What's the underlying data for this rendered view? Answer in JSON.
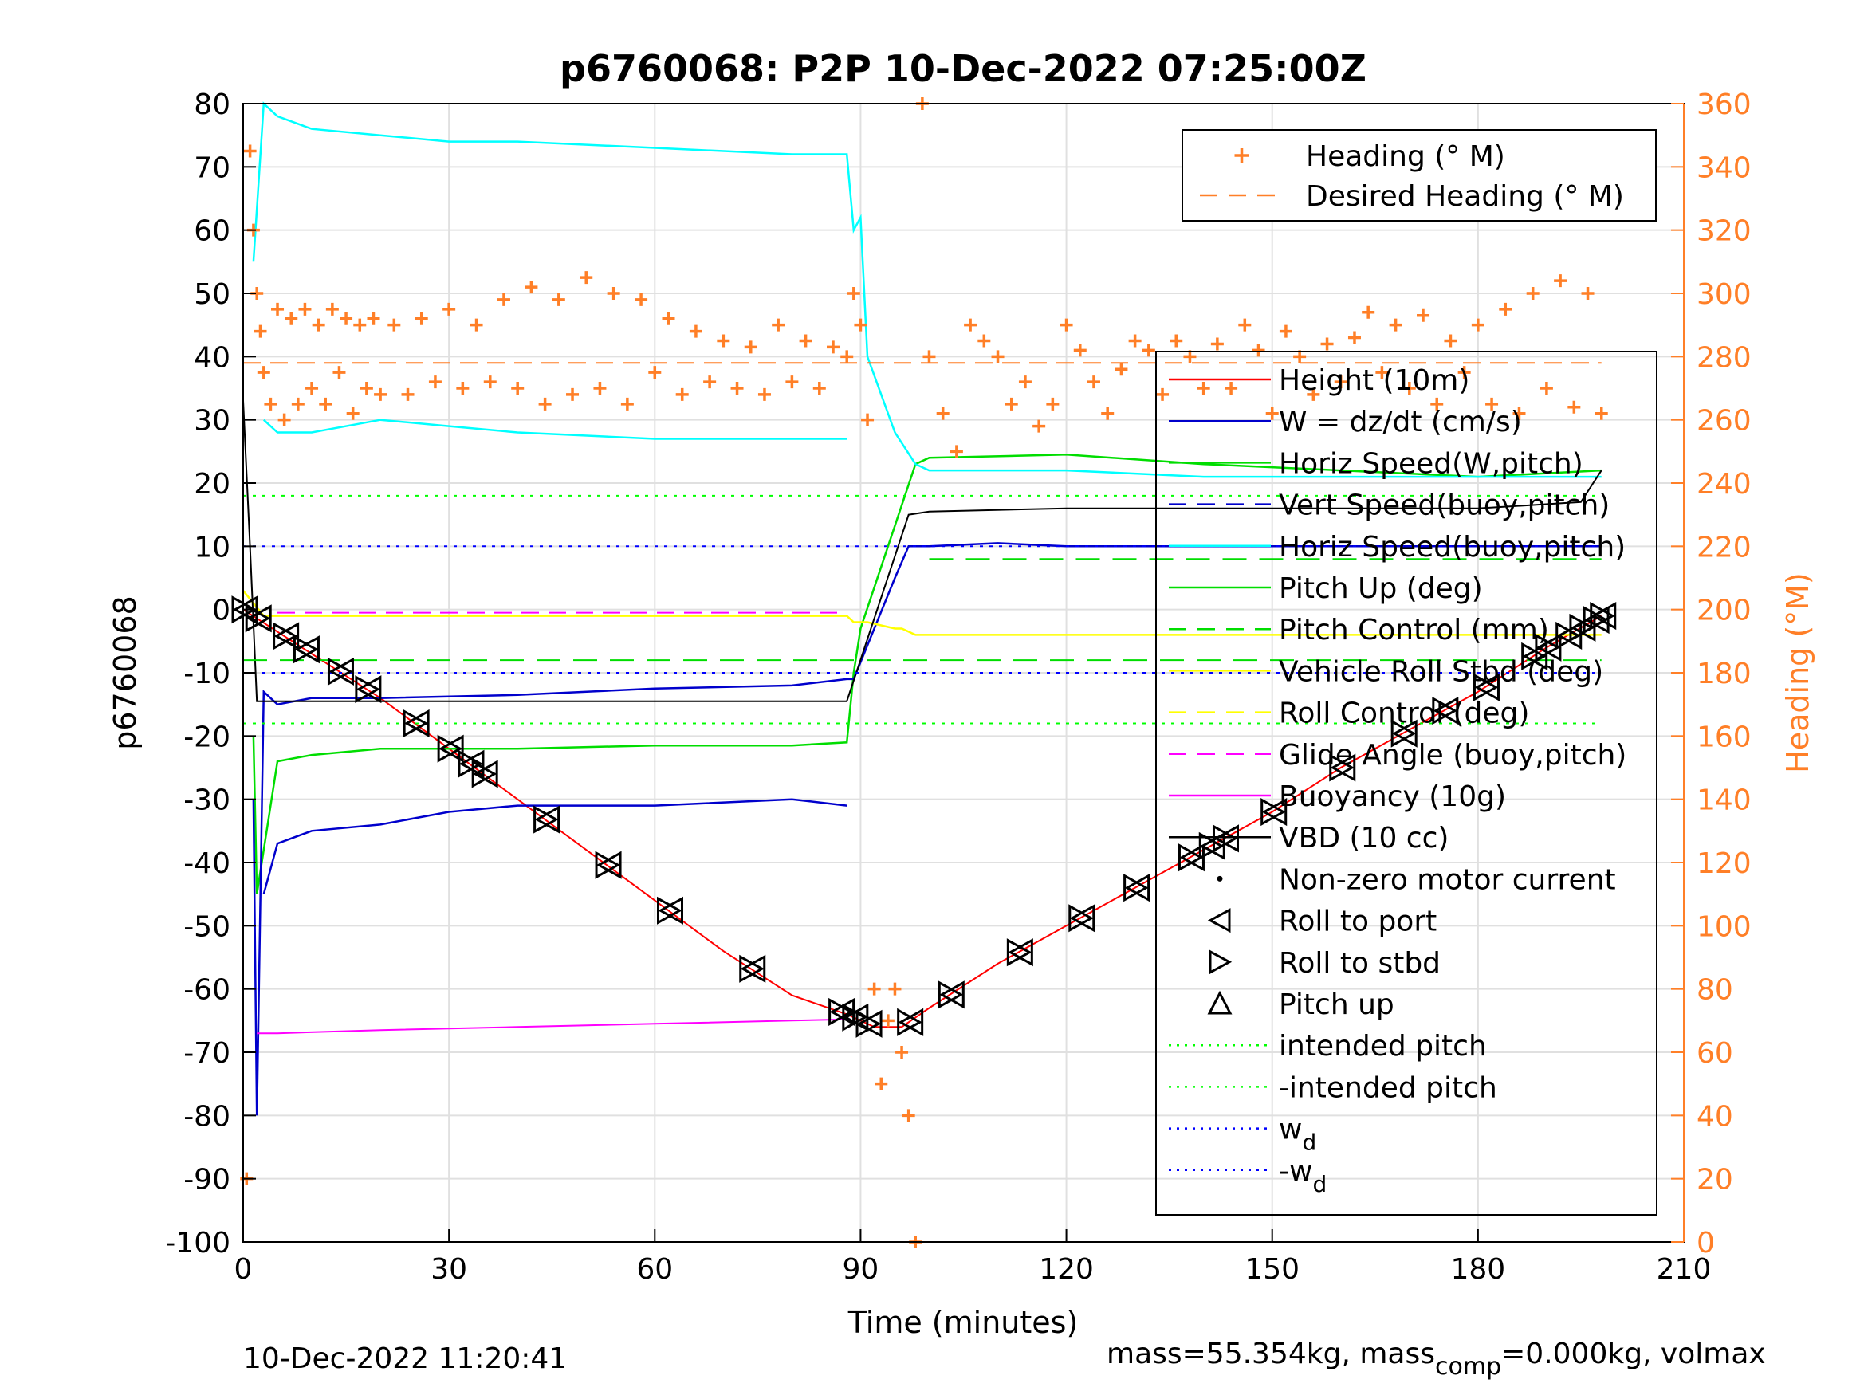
{
  "chart_data": {
    "type": "line",
    "title": "p6760068: P2P 10-Dec-2022 07:25:00Z",
    "xlabel": "Time (minutes)",
    "ylabel": "p6760068",
    "y2label": "Heading (°M)",
    "xlim": [
      0,
      210
    ],
    "ylim": [
      -100,
      80
    ],
    "y2lim": [
      0,
      360
    ],
    "x_ticks": [
      "0",
      "30",
      "60",
      "90",
      "120",
      "150",
      "180",
      "210"
    ],
    "y_ticks": [
      "80",
      "70",
      "60",
      "50",
      "40",
      "30",
      "20",
      "10",
      "0",
      "-10",
      "-20",
      "-30",
      "-40",
      "-50",
      "-60",
      "-70",
      "-80",
      "-90",
      "-100"
    ],
    "y2_ticks": [
      "360",
      "340",
      "320",
      "300",
      "280",
      "260",
      "240",
      "220",
      "200",
      "180",
      "160",
      "140",
      "120",
      "100",
      "80",
      "60",
      "40",
      "20",
      "0"
    ],
    "grid": true,
    "footer_left": "10-Dec-2022 11:20:41",
    "footer_right_1": "mass=55.354kg, mass",
    "footer_right_sub": "comp",
    "footer_right_2": "=0.000kg, volmax",
    "colors": {
      "heading": "#ff7f27",
      "height": "#ff0000",
      "w": "#0000cc",
      "horiz": "#00ffff",
      "pitch": "#00dd00",
      "roll": "#ffff00",
      "glide": "#ff00ff",
      "vbd": "#000000"
    },
    "legend_top": [
      {
        "label": "Heading (° M)",
        "style": "plus",
        "color": "#ff7f27"
      },
      {
        "label": "Desired Heading (° M)",
        "style": "dash",
        "color": "#ff7f27"
      }
    ],
    "legend_main": [
      {
        "label": "Height (10m)",
        "style": "solid",
        "color": "#ff0000"
      },
      {
        "label": "W = dz/dt (cm/s)",
        "style": "solid",
        "color": "#0000cc"
      },
      {
        "label": "Horiz Speed(W,pitch)",
        "style": "solid",
        "color": "#00dd00"
      },
      {
        "label": "Vert Speed(buoy,pitch)",
        "style": "dash",
        "color": "#0000cc"
      },
      {
        "label": "Horiz Speed(buoy,pitch)",
        "style": "solid",
        "color": "#00ffff"
      },
      {
        "label": "Pitch Up (deg)",
        "style": "solid",
        "color": "#00dd00"
      },
      {
        "label": "Pitch Control (mm)",
        "style": "dash",
        "color": "#00dd00"
      },
      {
        "label": "Vehicle Roll Stbd (deg)",
        "style": "solid",
        "color": "#ffff00"
      },
      {
        "label": "Roll Control (deg)",
        "style": "dash",
        "color": "#ffff00"
      },
      {
        "label": "Glide Angle (buoy,pitch)",
        "style": "dash",
        "color": "#ff00ff"
      },
      {
        "label": "Buoyancy (10g)",
        "style": "solid",
        "color": "#ff00ff"
      },
      {
        "label": "VBD (10 cc)",
        "style": "solid",
        "color": "#000000"
      },
      {
        "label": "Non-zero motor current",
        "style": "dot",
        "color": "#000000"
      },
      {
        "label": "Roll to port",
        "style": "tri-left",
        "color": "#000000"
      },
      {
        "label": "Roll to stbd",
        "style": "tri-right",
        "color": "#000000"
      },
      {
        "label": "Pitch up",
        "style": "tri-up",
        "color": "#000000"
      },
      {
        "label": "intended pitch",
        "style": "dotted",
        "color": "#00ff00"
      },
      {
        "label": "-intended pitch",
        "style": "dotted",
        "color": "#00ff00"
      },
      {
        "label": "w",
        "sub": "d",
        "style": "dotted",
        "color": "#0000ff"
      },
      {
        "label": "-w",
        "sub": "d",
        "style": "dotted",
        "color": "#0000ff"
      }
    ],
    "series": [
      {
        "name": "Height (10m)",
        "axis": "left",
        "x": [
          0,
          10,
          20,
          30,
          40,
          50,
          60,
          70,
          80,
          88,
          92,
          96,
          100,
          110,
          120,
          130,
          140,
          150,
          160,
          170,
          180,
          190,
          198
        ],
        "y": [
          0,
          -7,
          -14,
          -22,
          -30,
          -38,
          -46,
          -54,
          -61,
          -64,
          -66,
          -66,
          -63,
          -56,
          -50,
          -44,
          -38,
          -32,
          -25,
          -19,
          -13,
          -6,
          -1
        ]
      },
      {
        "name": "Horiz Speed(W,pitch)",
        "axis": "left",
        "x": [
          1.5,
          2,
          5,
          10,
          20,
          40,
          60,
          80,
          88,
          89,
          90,
          98,
          100,
          120,
          140,
          160,
          180,
          198
        ],
        "y": [
          -20,
          -45,
          -24,
          -23,
          -22,
          -22,
          -21.5,
          -21.5,
          -21,
          -10,
          -3,
          23,
          24,
          24.5,
          23,
          22,
          21,
          22
        ]
      },
      {
        "name": "W = dz/dt (cm/s)",
        "axis": "left",
        "x": [
          1.5,
          2,
          3,
          5,
          10,
          20,
          40,
          60,
          80,
          88,
          89,
          95,
          97,
          100,
          110,
          120,
          140,
          160,
          180,
          198
        ],
        "y": [
          -30,
          -80,
          -13,
          -15,
          -14,
          -14,
          -13.5,
          -12.5,
          -12,
          -11,
          -11,
          5,
          10,
          10,
          10.5,
          10,
          10,
          10,
          10,
          10
        ]
      },
      {
        "name": "W lower",
        "axis": "left",
        "x": [
          3,
          5,
          10,
          20,
          30,
          40,
          60,
          80,
          88
        ],
        "y": [
          -45,
          -37,
          -35,
          -34,
          -32,
          -31,
          -31,
          -30,
          -31
        ]
      },
      {
        "name": "Horiz Speed(buoy,pitch)",
        "axis": "left",
        "x": [
          1.5,
          3,
          5,
          10,
          20,
          30,
          40,
          60,
          80,
          88,
          89,
          90,
          91,
          95,
          98,
          100,
          120,
          140,
          160,
          180,
          198
        ],
        "y": [
          55,
          80,
          78,
          76,
          75,
          74,
          74,
          73,
          72,
          72,
          60,
          62,
          40,
          28,
          23,
          22,
          22,
          21,
          21,
          21,
          21
        ]
      },
      {
        "name": "Horiz Speed lower",
        "axis": "left",
        "x": [
          3,
          5,
          10,
          20,
          30,
          40,
          60,
          80,
          88
        ],
        "y": [
          30,
          28,
          28,
          30,
          29,
          28,
          27,
          27,
          27
        ]
      },
      {
        "name": "Vehicle Roll Stbd (deg)",
        "axis": "left",
        "x": [
          0,
          3,
          5,
          88,
          89,
          91,
          95,
          96,
          98,
          100,
          198
        ],
        "y": [
          3,
          -1,
          -1,
          -1,
          -2,
          -2,
          -3,
          -3,
          -4,
          -4,
          -4
        ]
      },
      {
        "name": "Buoyancy (10g)",
        "axis": "left",
        "x": [
          2,
          5,
          20,
          40,
          60,
          80,
          88
        ],
        "y": [
          -67,
          -67,
          -66.5,
          -66,
          -65.5,
          -65,
          -64.8
        ]
      },
      {
        "name": "Glide Angle (buoy,pitch)",
        "axis": "left",
        "x": [
          5,
          88
        ],
        "y": [
          -0.5,
          -0.5
        ]
      },
      {
        "name": "VBD (10 cc)",
        "axis": "left",
        "x": [
          0,
          1,
          2,
          88,
          97,
          100,
          120,
          150,
          180,
          195,
          198
        ],
        "y": [
          33,
          10,
          -14.5,
          -14.5,
          15,
          15.5,
          16,
          16,
          16,
          17,
          22
        ]
      },
      {
        "name": "Pitch Control (mm)",
        "axis": "left",
        "x": [
          0,
          88,
          89,
          100,
          198
        ],
        "y": [
          -8,
          -8,
          -8,
          -8,
          -8
        ]
      },
      {
        "name": "Pitch Control up",
        "axis": "left",
        "x": [
          100,
          198
        ],
        "y": [
          8,
          8
        ]
      },
      {
        "name": "intended pitch",
        "axis": "left",
        "x": [
          0,
          198
        ],
        "y": [
          18,
          18
        ]
      },
      {
        "name": "-intended pitch",
        "axis": "left",
        "x": [
          0,
          198
        ],
        "y": [
          -18,
          -18
        ]
      },
      {
        "name": "w_d",
        "axis": "left",
        "x": [
          0,
          198
        ],
        "y": [
          10,
          10
        ]
      },
      {
        "name": "-w_d",
        "axis": "left",
        "x": [
          0,
          198
        ],
        "y": [
          -10,
          -10
        ]
      },
      {
        "name": "Desired Heading (° M)",
        "axis": "right",
        "x": [
          0,
          198
        ],
        "y": [
          278,
          278
        ]
      },
      {
        "name": "Heading (° M)",
        "axis": "right",
        "x": [
          0.5,
          1,
          1.5,
          2,
          2.5,
          3,
          4,
          5,
          6,
          7,
          8,
          9,
          10,
          11,
          12,
          13,
          14,
          15,
          16,
          17,
          18,
          19,
          20,
          22,
          24,
          26,
          28,
          30,
          32,
          34,
          36,
          38,
          40,
          42,
          44,
          46,
          48,
          50,
          52,
          54,
          56,
          58,
          60,
          62,
          64,
          66,
          68,
          70,
          72,
          74,
          76,
          78,
          80,
          82,
          84,
          86,
          88,
          89,
          90,
          91,
          92,
          93,
          94,
          95,
          96,
          97,
          98,
          99,
          100,
          102,
          104,
          106,
          108,
          110,
          112,
          114,
          116,
          118,
          120,
          122,
          124,
          126,
          128,
          130,
          132,
          134,
          136,
          138,
          140,
          142,
          144,
          146,
          148,
          150,
          152,
          154,
          156,
          158,
          160,
          162,
          164,
          166,
          168,
          170,
          172,
          174,
          176,
          178,
          180,
          182,
          184,
          186,
          188,
          190,
          192,
          194,
          196,
          198
        ],
        "y": [
          20,
          345,
          320,
          300,
          288,
          275,
          265,
          295,
          260,
          292,
          265,
          295,
          270,
          290,
          265,
          295,
          275,
          292,
          262,
          290,
          270,
          292,
          268,
          290,
          268,
          292,
          272,
          295,
          270,
          290,
          272,
          298,
          270,
          302,
          265,
          298,
          268,
          305,
          270,
          300,
          265,
          298,
          275,
          292,
          268,
          288,
          272,
          285,
          270,
          283,
          268,
          290,
          272,
          285,
          270,
          283,
          280,
          300,
          290,
          260,
          80,
          50,
          70,
          80,
          60,
          40,
          0,
          360,
          280,
          262,
          250,
          290,
          285,
          280,
          265,
          272,
          258,
          265,
          290,
          282,
          272,
          262,
          276,
          285,
          282,
          268,
          285,
          280,
          270,
          284,
          270,
          290,
          282,
          262,
          288,
          280,
          268,
          284,
          272,
          286,
          294,
          275,
          290,
          270,
          293,
          265,
          285,
          275,
          290,
          265,
          295,
          262,
          300,
          270,
          304,
          264,
          300,
          262
        ]
      }
    ]
  }
}
